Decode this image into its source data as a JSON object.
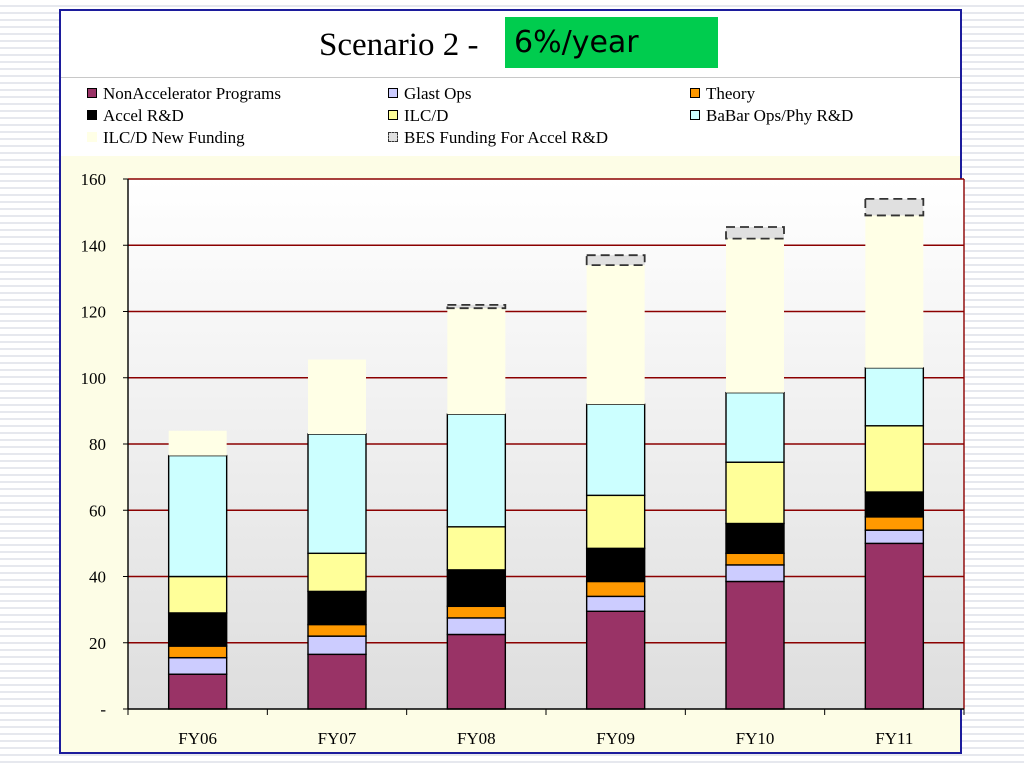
{
  "slide": {
    "title_prefix": "Scenario 2 - ",
    "title_highlight": "6%/year",
    "highlight_color": "#00cc4e"
  },
  "chart_data": {
    "type": "bar",
    "stacked": true,
    "categories": [
      "FY06",
      "FY07",
      "FY08",
      "FY09",
      "FY10",
      "FY11"
    ],
    "series": [
      {
        "name": "NonAccelerator Programs",
        "color": "#993366",
        "values": [
          10.5,
          16.5,
          22.5,
          29.5,
          38.5,
          50
        ]
      },
      {
        "name": "Glast Ops",
        "color": "#ccccff",
        "values": [
          5,
          5.5,
          5,
          4.5,
          5,
          4
        ]
      },
      {
        "name": "Theory",
        "color": "#ff9900",
        "values": [
          3.5,
          3.5,
          3.5,
          4.5,
          3.5,
          4
        ]
      },
      {
        "name": "Accel R&D",
        "color": "#000000",
        "values": [
          10,
          10,
          11,
          10,
          9,
          7.5
        ]
      },
      {
        "name": "ILC/D",
        "color": "#ffff99",
        "values": [
          11,
          11.5,
          13,
          16,
          18.5,
          20
        ]
      },
      {
        "name": "BaBar Ops/Phy R&D",
        "color": "#ccffff",
        "values": [
          36.5,
          36,
          34,
          27.5,
          21,
          17.5
        ]
      },
      {
        "name": "ILC/D New Funding",
        "color": "#ffffe6",
        "values": [
          7.5,
          22.5,
          32,
          42,
          46.5,
          46
        ]
      },
      {
        "name": "BES Funding For Accel R&D",
        "color": "#e0e0e0",
        "dashed": true,
        "values": [
          0,
          0,
          1,
          3,
          3.5,
          5
        ]
      }
    ],
    "y_ticks": [
      "-",
      "20",
      "40",
      "60",
      "80",
      "100",
      "120",
      "140",
      "160"
    ],
    "ylim": [
      0,
      160
    ],
    "grid": true,
    "legend_position": "top"
  }
}
